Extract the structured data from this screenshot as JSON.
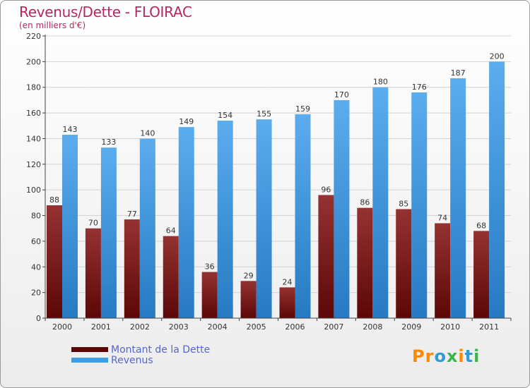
{
  "header": {
    "title": "Revenus/Dette - FLOIRAC",
    "subtitle": "(en milliers d'€)"
  },
  "brand": {
    "name": "Proxiti",
    "letters": [
      "P",
      "r",
      "o",
      "x",
      "i",
      "t",
      "i"
    ],
    "colors": [
      "#ff8800",
      "#ff8800",
      "#2e9bd6",
      "#3ab54a",
      "#ff8800",
      "#2e9bd6",
      "#3ab54a"
    ]
  },
  "chart_data": {
    "type": "bar",
    "title": "Revenus/Dette - FLOIRAC",
    "subtitle": "(en milliers d'€)",
    "xlabel": "",
    "ylabel": "",
    "categories": [
      "2000",
      "2001",
      "2002",
      "2003",
      "2004",
      "2005",
      "2006",
      "2007",
      "2008",
      "2009",
      "2010",
      "2011"
    ],
    "series": [
      {
        "name": "Montant de la Dette",
        "color": "#7a1010",
        "values": [
          88,
          70,
          77,
          64,
          36,
          29,
          24,
          96,
          86,
          85,
          74,
          68
        ]
      },
      {
        "name": "Revenus",
        "color": "#3d9ee5",
        "values": [
          143,
          133,
          140,
          149,
          154,
          155,
          159,
          170,
          180,
          176,
          187,
          200
        ]
      }
    ],
    "ylim": [
      0,
      220
    ],
    "yticks": [
      0,
      20,
      40,
      60,
      80,
      100,
      120,
      140,
      160,
      180,
      200,
      220
    ],
    "grid": true,
    "legend": "bottom-left"
  }
}
